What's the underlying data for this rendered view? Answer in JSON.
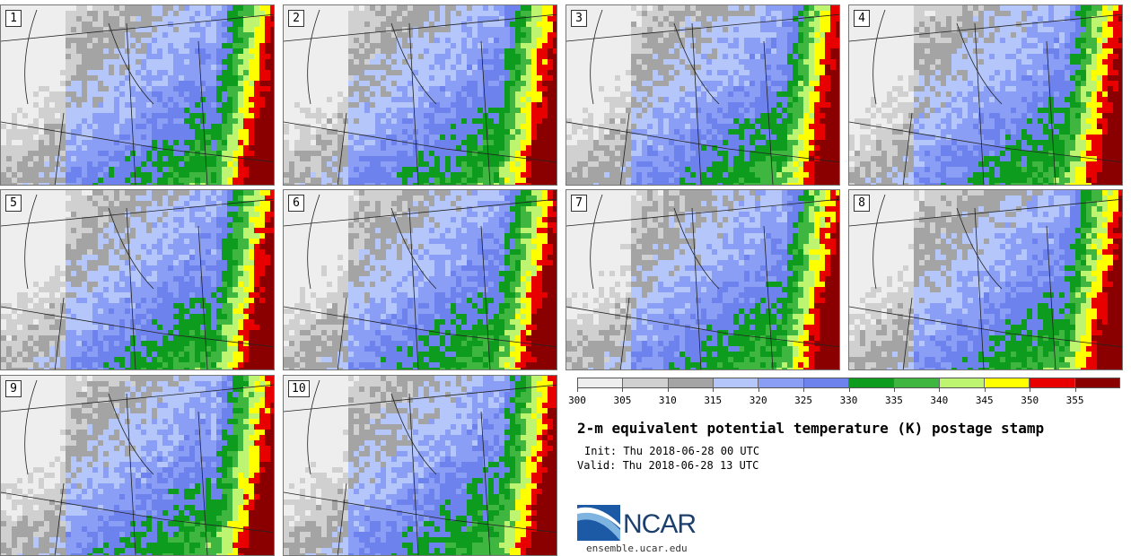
{
  "product": {
    "title": "2-m equivalent potential temperature (K) postage stamp",
    "init_line": "Init: Thu 2018-06-28 00 UTC",
    "valid_line": "Valid: Thu 2018-06-28 13 UTC"
  },
  "members": [
    "1",
    "2",
    "3",
    "4",
    "5",
    "6",
    "7",
    "8",
    "9",
    "10"
  ],
  "colorbar": {
    "units": "K",
    "min": 300,
    "step": 5,
    "ticks": [
      "300",
      "305",
      "310",
      "315",
      "320",
      "325",
      "330",
      "335",
      "340",
      "345",
      "350",
      "355"
    ],
    "bin_colors": [
      "#eeeeee",
      "#d0d0d0",
      "#a4a4a4",
      "#b5c6fa",
      "#8a9ef5",
      "#6e82ee",
      "#0e9c1f",
      "#3fb63f",
      "#bdf571",
      "#ffff00",
      "#e80000",
      "#8a0000"
    ]
  },
  "logo": {
    "wordmark": "NCAR",
    "url": "ensemble.ucar.edu"
  }
}
